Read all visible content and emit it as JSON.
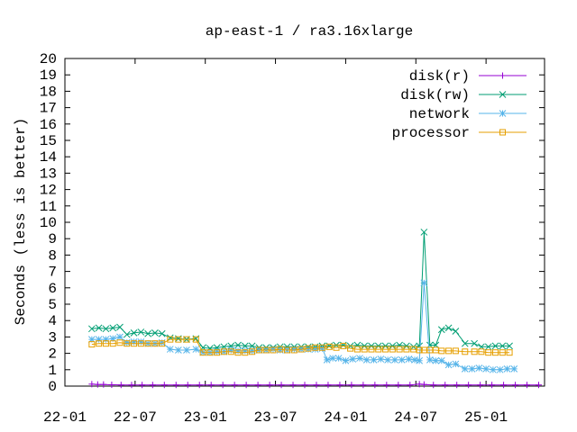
{
  "chart_data": {
    "type": "line",
    "title": "ap-east-1 / ra3.16xlarge",
    "xlabel": "",
    "ylabel": "Seconds (less is better)",
    "x_ticks": [
      "22-01",
      "22-07",
      "23-01",
      "23-07",
      "24-01",
      "24-07",
      "25-01"
    ],
    "x_tick_months": [
      0,
      6,
      12,
      18,
      24,
      30,
      36
    ],
    "xlim_months": [
      0,
      41
    ],
    "ylim": [
      0,
      20
    ],
    "y_ticks": [
      0,
      1,
      2,
      3,
      4,
      5,
      6,
      7,
      8,
      9,
      10,
      11,
      12,
      13,
      14,
      15,
      16,
      17,
      18,
      19,
      20
    ],
    "grid": false,
    "legend_position": "top-right",
    "series": [
      {
        "name": "disk(r)",
        "color": "#9400d3",
        "marker": "plus",
        "points": [
          [
            2.3,
            0.12
          ],
          [
            2.8,
            0.1
          ],
          [
            3.3,
            0.1
          ],
          [
            4.0,
            0.08
          ],
          [
            4.8,
            0.07
          ],
          [
            5.7,
            0.07
          ],
          [
            6.6,
            0.07
          ],
          [
            7.5,
            0.07
          ],
          [
            8.5,
            0.07
          ],
          [
            9.5,
            0.07
          ],
          [
            10.5,
            0.07
          ],
          [
            11.5,
            0.07
          ],
          [
            12.5,
            0.07
          ],
          [
            13.5,
            0.07
          ],
          [
            14.5,
            0.07
          ],
          [
            15.5,
            0.07
          ],
          [
            16.5,
            0.07
          ],
          [
            17.5,
            0.07
          ],
          [
            18.5,
            0.07
          ],
          [
            19.5,
            0.07
          ],
          [
            20.5,
            0.07
          ],
          [
            21.5,
            0.07
          ],
          [
            22.5,
            0.07
          ],
          [
            23.5,
            0.07
          ],
          [
            24.5,
            0.07
          ],
          [
            25.5,
            0.07
          ],
          [
            26.5,
            0.07
          ],
          [
            27.5,
            0.07
          ],
          [
            28.5,
            0.07
          ],
          [
            29.5,
            0.07
          ],
          [
            30.3,
            0.12
          ],
          [
            30.7,
            0.1
          ],
          [
            31.5,
            0.07
          ],
          [
            32.5,
            0.07
          ],
          [
            33.5,
            0.07
          ],
          [
            34.5,
            0.07
          ],
          [
            35.5,
            0.07
          ],
          [
            36.5,
            0.07
          ],
          [
            37.5,
            0.07
          ],
          [
            38.5,
            0.07
          ],
          [
            39.5,
            0.07
          ],
          [
            40.5,
            0.07
          ]
        ]
      },
      {
        "name": "disk(rw)",
        "color": "#009e73",
        "marker": "cross",
        "points": [
          [
            2.3,
            3.5
          ],
          [
            2.9,
            3.55
          ],
          [
            3.5,
            3.5
          ],
          [
            4.1,
            3.55
          ],
          [
            4.7,
            3.6
          ],
          [
            5.3,
            3.15
          ],
          [
            5.9,
            3.25
          ],
          [
            6.5,
            3.3
          ],
          [
            7.1,
            3.2
          ],
          [
            7.7,
            3.25
          ],
          [
            8.3,
            3.2
          ],
          [
            9.0,
            2.95
          ],
          [
            9.7,
            2.9
          ],
          [
            10.4,
            2.85
          ],
          [
            11.2,
            2.9
          ],
          [
            11.8,
            2.35
          ],
          [
            12.4,
            2.3
          ],
          [
            13.0,
            2.35
          ],
          [
            13.6,
            2.4
          ],
          [
            14.2,
            2.45
          ],
          [
            14.8,
            2.5
          ],
          [
            15.4,
            2.45
          ],
          [
            16.0,
            2.45
          ],
          [
            16.6,
            2.35
          ],
          [
            17.2,
            2.35
          ],
          [
            17.8,
            2.35
          ],
          [
            18.4,
            2.4
          ],
          [
            19.0,
            2.4
          ],
          [
            19.6,
            2.4
          ],
          [
            20.2,
            2.4
          ],
          [
            20.8,
            2.4
          ],
          [
            21.4,
            2.4
          ],
          [
            22.0,
            2.45
          ],
          [
            22.6,
            2.45
          ],
          [
            23.2,
            2.5
          ],
          [
            23.8,
            2.5
          ],
          [
            24.4,
            2.45
          ],
          [
            25.0,
            2.5
          ],
          [
            25.6,
            2.45
          ],
          [
            26.2,
            2.45
          ],
          [
            26.8,
            2.45
          ],
          [
            27.4,
            2.45
          ],
          [
            28.0,
            2.45
          ],
          [
            28.6,
            2.5
          ],
          [
            29.2,
            2.45
          ],
          [
            29.8,
            2.4
          ],
          [
            30.3,
            2.45
          ],
          [
            30.7,
            9.4
          ],
          [
            31.2,
            2.5
          ],
          [
            31.7,
            2.5
          ],
          [
            32.2,
            3.45
          ],
          [
            32.8,
            3.55
          ],
          [
            33.4,
            3.35
          ],
          [
            34.2,
            2.6
          ],
          [
            35.0,
            2.6
          ],
          [
            35.6,
            2.4
          ],
          [
            36.2,
            2.4
          ],
          [
            36.8,
            2.45
          ],
          [
            37.4,
            2.45
          ],
          [
            38.0,
            2.45
          ]
        ]
      },
      {
        "name": "network",
        "color": "#56b4e9",
        "marker": "star",
        "points": [
          [
            2.3,
            2.85
          ],
          [
            2.9,
            2.85
          ],
          [
            3.5,
            2.85
          ],
          [
            4.1,
            2.9
          ],
          [
            4.7,
            3.0
          ],
          [
            5.3,
            2.65
          ],
          [
            5.9,
            2.7
          ],
          [
            6.5,
            2.7
          ],
          [
            7.1,
            2.6
          ],
          [
            7.7,
            2.6
          ],
          [
            8.3,
            2.65
          ],
          [
            9.0,
            2.25
          ],
          [
            9.7,
            2.2
          ],
          [
            10.4,
            2.2
          ],
          [
            11.2,
            2.25
          ],
          [
            11.8,
            2.05
          ],
          [
            12.4,
            2.05
          ],
          [
            13.0,
            2.1
          ],
          [
            13.6,
            2.1
          ],
          [
            14.2,
            2.2
          ],
          [
            14.8,
            2.15
          ],
          [
            15.4,
            2.15
          ],
          [
            16.0,
            2.15
          ],
          [
            16.6,
            2.2
          ],
          [
            17.2,
            2.2
          ],
          [
            17.8,
            2.25
          ],
          [
            18.4,
            2.2
          ],
          [
            19.0,
            2.2
          ],
          [
            19.6,
            2.25
          ],
          [
            20.2,
            2.25
          ],
          [
            20.8,
            2.25
          ],
          [
            21.4,
            2.25
          ],
          [
            22.0,
            2.3
          ],
          [
            22.4,
            1.6
          ],
          [
            22.9,
            1.7
          ],
          [
            23.4,
            1.7
          ],
          [
            24.0,
            1.55
          ],
          [
            24.6,
            1.65
          ],
          [
            25.2,
            1.7
          ],
          [
            25.8,
            1.6
          ],
          [
            26.4,
            1.6
          ],
          [
            27.0,
            1.65
          ],
          [
            27.6,
            1.6
          ],
          [
            28.2,
            1.6
          ],
          [
            28.8,
            1.6
          ],
          [
            29.4,
            1.65
          ],
          [
            29.9,
            1.6
          ],
          [
            30.3,
            1.55
          ],
          [
            30.7,
            6.3
          ],
          [
            31.2,
            1.6
          ],
          [
            31.7,
            1.55
          ],
          [
            32.2,
            1.55
          ],
          [
            32.8,
            1.3
          ],
          [
            33.4,
            1.35
          ],
          [
            34.2,
            1.05
          ],
          [
            34.8,
            1.05
          ],
          [
            35.4,
            1.1
          ],
          [
            36.0,
            1.05
          ],
          [
            36.6,
            1.0
          ],
          [
            37.2,
            1.0
          ],
          [
            37.8,
            1.05
          ],
          [
            38.4,
            1.05
          ]
        ]
      },
      {
        "name": "processor",
        "color": "#e69f00",
        "marker": "square",
        "points": [
          [
            2.3,
            2.55
          ],
          [
            2.9,
            2.6
          ],
          [
            3.5,
            2.6
          ],
          [
            4.1,
            2.6
          ],
          [
            4.7,
            2.65
          ],
          [
            5.3,
            2.6
          ],
          [
            5.9,
            2.6
          ],
          [
            6.5,
            2.6
          ],
          [
            7.1,
            2.6
          ],
          [
            7.7,
            2.6
          ],
          [
            8.3,
            2.6
          ],
          [
            9.0,
            2.85
          ],
          [
            9.7,
            2.85
          ],
          [
            10.4,
            2.85
          ],
          [
            11.2,
            2.85
          ],
          [
            11.8,
            2.05
          ],
          [
            12.4,
            2.05
          ],
          [
            13.0,
            2.05
          ],
          [
            13.6,
            2.1
          ],
          [
            14.2,
            2.1
          ],
          [
            14.8,
            2.05
          ],
          [
            15.4,
            2.05
          ],
          [
            16.0,
            2.1
          ],
          [
            16.6,
            2.2
          ],
          [
            17.2,
            2.2
          ],
          [
            17.8,
            2.2
          ],
          [
            18.4,
            2.25
          ],
          [
            19.0,
            2.2
          ],
          [
            19.6,
            2.2
          ],
          [
            20.2,
            2.25
          ],
          [
            20.8,
            2.3
          ],
          [
            21.4,
            2.35
          ],
          [
            22.0,
            2.35
          ],
          [
            22.6,
            2.4
          ],
          [
            23.2,
            2.35
          ],
          [
            23.8,
            2.45
          ],
          [
            24.4,
            2.3
          ],
          [
            25.0,
            2.25
          ],
          [
            25.6,
            2.25
          ],
          [
            26.2,
            2.25
          ],
          [
            26.8,
            2.25
          ],
          [
            27.4,
            2.25
          ],
          [
            28.0,
            2.25
          ],
          [
            28.6,
            2.25
          ],
          [
            29.2,
            2.25
          ],
          [
            29.8,
            2.25
          ],
          [
            30.3,
            2.2
          ],
          [
            30.7,
            2.2
          ],
          [
            31.2,
            2.2
          ],
          [
            31.7,
            2.2
          ],
          [
            32.2,
            2.15
          ],
          [
            32.8,
            2.15
          ],
          [
            33.4,
            2.15
          ],
          [
            34.2,
            2.1
          ],
          [
            35.0,
            2.1
          ],
          [
            35.6,
            2.1
          ],
          [
            36.2,
            2.05
          ],
          [
            36.8,
            2.05
          ],
          [
            37.4,
            2.05
          ],
          [
            38.0,
            2.05
          ]
        ]
      }
    ]
  }
}
